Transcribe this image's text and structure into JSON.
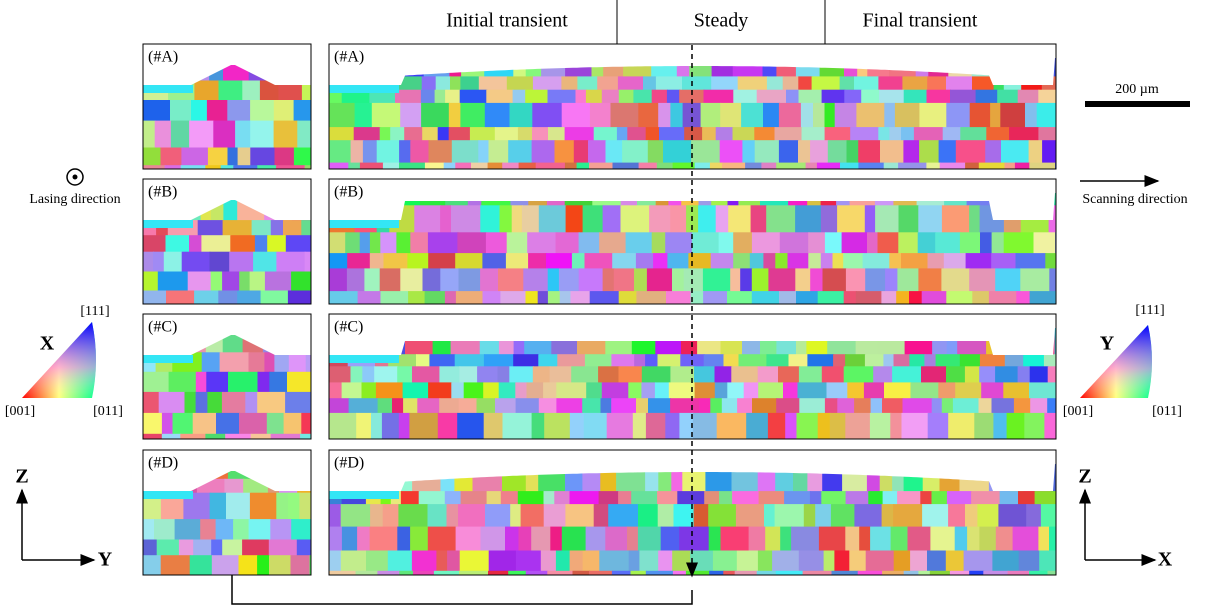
{
  "header": {
    "regions": [
      "Initial transient",
      "Steady",
      "Final transient"
    ]
  },
  "panels": [
    {
      "label": "(#A)"
    },
    {
      "label": "(#B)"
    },
    {
      "label": "(#C)"
    },
    {
      "label": "(#D)"
    }
  ],
  "scale_bar": "200 µm",
  "lasing_direction": "Lasing direction",
  "scanning_direction": "Scanning direction",
  "ipf_left": {
    "axis": "X",
    "top": "[111]",
    "left": "[001]",
    "right": "[011]"
  },
  "ipf_right": {
    "axis": "Y",
    "top": "[111]",
    "left": "[001]",
    "right": "[011]"
  },
  "axes_left": {
    "vertical": "Z",
    "horizontal": "Y"
  },
  "axes_right": {
    "vertical": "Z",
    "horizontal": "X"
  }
}
